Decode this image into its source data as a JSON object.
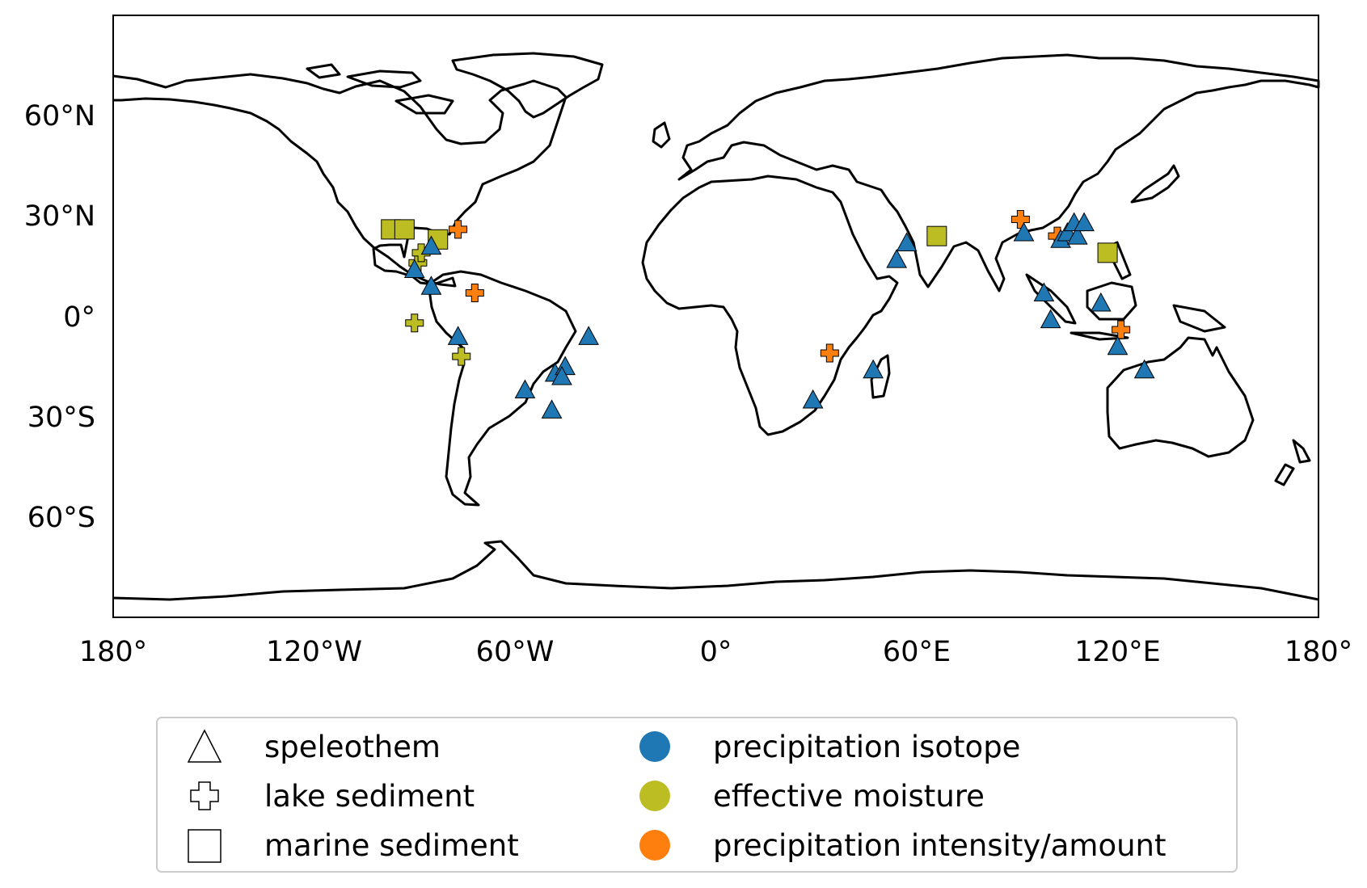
{
  "map": {
    "lon_range": [
      -180,
      180
    ],
    "lat_range": [
      -90,
      90
    ],
    "projection": "plate-carree",
    "grid": false,
    "x_ticks": [
      {
        "lon": -180,
        "label": "180°"
      },
      {
        "lon": -120,
        "label": "120°W"
      },
      {
        "lon": -60,
        "label": "60°W"
      },
      {
        "lon": 0,
        "label": "0°"
      },
      {
        "lon": 60,
        "label": "60°E"
      },
      {
        "lon": 120,
        "label": "120°E"
      },
      {
        "lon": 180,
        "label": "180°"
      }
    ],
    "y_ticks": [
      {
        "lat": 60,
        "label": "60°N"
      },
      {
        "lat": 30,
        "label": "30°N"
      },
      {
        "lat": 0,
        "label": "0°"
      },
      {
        "lat": -30,
        "label": "30°S"
      },
      {
        "lat": -60,
        "label": "60°S"
      }
    ]
  },
  "colors": {
    "precipitation_isotope": "#1f77b4",
    "effective_moisture": "#bcbd22",
    "precipitation_intensity": "#ff7f0e",
    "coastline": "#000000"
  },
  "legend": {
    "placement": "bottom-center",
    "archives": [
      {
        "label": "speleothem",
        "marker": "triangle"
      },
      {
        "label": "lake sediment",
        "marker": "plus"
      },
      {
        "label": "marine sediment",
        "marker": "square"
      }
    ],
    "categories": [
      {
        "label": "precipitation isotope",
        "color": "#1f77b4"
      },
      {
        "label": "effective moisture",
        "color": "#bcbd22"
      },
      {
        "label": "precipitation intensity/amount",
        "color": "#ff7f0e"
      }
    ]
  },
  "chart_data": {
    "type": "scatter",
    "xlim": [
      -180,
      180
    ],
    "ylim": [
      -90,
      90
    ],
    "points": [
      {
        "lon": -90,
        "lat": 14,
        "marker": "triangle",
        "color": "#1f77b4"
      },
      {
        "lon": -85,
        "lat": 9,
        "marker": "triangle",
        "color": "#1f77b4"
      },
      {
        "lon": -85,
        "lat": 21,
        "marker": "triangle",
        "color": "#1f77b4"
      },
      {
        "lon": -77,
        "lat": -6,
        "marker": "triangle",
        "color": "#1f77b4"
      },
      {
        "lon": -57,
        "lat": -22,
        "marker": "triangle",
        "color": "#1f77b4"
      },
      {
        "lon": -48,
        "lat": -17,
        "marker": "triangle",
        "color": "#1f77b4"
      },
      {
        "lon": -45,
        "lat": -15,
        "marker": "triangle",
        "color": "#1f77b4"
      },
      {
        "lon": -46,
        "lat": -18,
        "marker": "triangle",
        "color": "#1f77b4"
      },
      {
        "lon": -49,
        "lat": -28,
        "marker": "triangle",
        "color": "#1f77b4"
      },
      {
        "lon": -38,
        "lat": -6,
        "marker": "triangle",
        "color": "#1f77b4"
      },
      {
        "lon": 29,
        "lat": -25,
        "marker": "triangle",
        "color": "#1f77b4"
      },
      {
        "lon": 47,
        "lat": -16,
        "marker": "triangle",
        "color": "#1f77b4"
      },
      {
        "lon": 54,
        "lat": 17,
        "marker": "triangle",
        "color": "#1f77b4"
      },
      {
        "lon": 57,
        "lat": 22,
        "marker": "triangle",
        "color": "#1f77b4"
      },
      {
        "lon": 92,
        "lat": 25,
        "marker": "triangle",
        "color": "#1f77b4"
      },
      {
        "lon": 98,
        "lat": 7,
        "marker": "triangle",
        "color": "#1f77b4"
      },
      {
        "lon": 100,
        "lat": -1,
        "marker": "triangle",
        "color": "#1f77b4"
      },
      {
        "lon": 103,
        "lat": 23,
        "marker": "triangle",
        "color": "#1f77b4"
      },
      {
        "lon": 105,
        "lat": 25,
        "marker": "triangle",
        "color": "#1f77b4"
      },
      {
        "lon": 107,
        "lat": 28,
        "marker": "triangle",
        "color": "#1f77b4"
      },
      {
        "lon": 108,
        "lat": 24,
        "marker": "triangle",
        "color": "#1f77b4"
      },
      {
        "lon": 110,
        "lat": 28,
        "marker": "triangle",
        "color": "#1f77b4"
      },
      {
        "lon": 115,
        "lat": 4,
        "marker": "triangle",
        "color": "#1f77b4"
      },
      {
        "lon": 120,
        "lat": -9,
        "marker": "triangle",
        "color": "#1f77b4"
      },
      {
        "lon": 128,
        "lat": -16,
        "marker": "triangle",
        "color": "#1f77b4"
      },
      {
        "lon": -97,
        "lat": 26,
        "marker": "square",
        "color": "#bcbd22"
      },
      {
        "lon": -93,
        "lat": 26,
        "marker": "square",
        "color": "#bcbd22"
      },
      {
        "lon": -83,
        "lat": 23,
        "marker": "square",
        "color": "#bcbd22"
      },
      {
        "lon": 66,
        "lat": 24,
        "marker": "square",
        "color": "#bcbd22"
      },
      {
        "lon": 117,
        "lat": 19,
        "marker": "square",
        "color": "#bcbd22"
      },
      {
        "lon": -89,
        "lat": 16,
        "marker": "plus",
        "color": "#bcbd22"
      },
      {
        "lon": -88,
        "lat": 19,
        "marker": "plus",
        "color": "#bcbd22"
      },
      {
        "lon": -90,
        "lat": -2,
        "marker": "plus",
        "color": "#bcbd22"
      },
      {
        "lon": -76,
        "lat": -12,
        "marker": "plus",
        "color": "#bcbd22"
      },
      {
        "lon": -77,
        "lat": 26,
        "marker": "plus",
        "color": "#ff7f0e"
      },
      {
        "lon": -72,
        "lat": 7,
        "marker": "plus",
        "color": "#ff7f0e"
      },
      {
        "lon": 34,
        "lat": -11,
        "marker": "plus",
        "color": "#ff7f0e"
      },
      {
        "lon": 91,
        "lat": 29,
        "marker": "plus",
        "color": "#ff7f0e"
      },
      {
        "lon": 102,
        "lat": 24,
        "marker": "plus",
        "color": "#ff7f0e"
      },
      {
        "lon": 121,
        "lat": -4,
        "marker": "plus",
        "color": "#ff7f0e"
      }
    ]
  }
}
